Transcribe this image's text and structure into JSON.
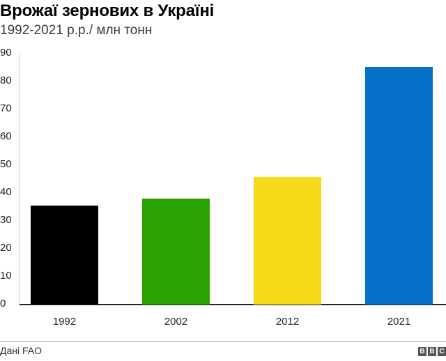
{
  "header": {
    "title": "Врожаї зернових в Україні",
    "subtitle": "1992-2021 р.р./ млн тонн"
  },
  "footer": {
    "source": "Дані FAO",
    "logo": [
      "B",
      "B",
      "C"
    ]
  },
  "chart_data": {
    "type": "bar",
    "title": "Врожаї зернових в Україні",
    "subtitle": "1992-2021 р.р./ млн тонн",
    "xlabel": "",
    "ylabel": "млн тонн",
    "categories": [
      "1992",
      "2002",
      "2012",
      "2021"
    ],
    "values": [
      35.5,
      38.0,
      45.8,
      85.3
    ],
    "colors": [
      "#000000",
      "#29a303",
      "#f5da17",
      "#0571c9"
    ],
    "ylim": [
      0,
      90
    ],
    "yticks": [
      0,
      10,
      20,
      30,
      40,
      50,
      60,
      70,
      80,
      90
    ],
    "grid": false,
    "legend": "none",
    "source": "Дані FAO"
  }
}
